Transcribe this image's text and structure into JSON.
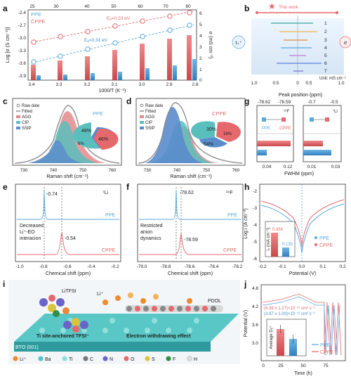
{
  "panels": {
    "a": {
      "letter": "a",
      "top_axis": {
        "ticks": [
          "25",
          "30",
          "40",
          "50",
          "60",
          "70",
          "80"
        ]
      },
      "x_axis": {
        "label": "1000/T (K⁻¹)",
        "ticks": [
          "3.4",
          "3.3",
          "3.2",
          "3.1",
          "3.0",
          "2.9",
          "2.8"
        ]
      },
      "y_left": {
        "label": "Log [σ (S cm⁻¹)]",
        "ticks": [
          "-2.4",
          "-2.7",
          "-3.0",
          "-3.3",
          "-3.6",
          "-3.9"
        ]
      },
      "y_right": {
        "label": "σ (mS cm⁻¹)",
        "ticks": [
          "6",
          "5",
          "4",
          "3",
          "2",
          "1",
          "0"
        ]
      },
      "legend": [
        "PPE",
        "CPPE"
      ],
      "ea_cppe": "Eₐ=0.20 eV",
      "ea_ppe": "Eₐ=0.31 eV"
    },
    "b": {
      "letter": "b",
      "this_work": "This work",
      "tplus": "t₊⁺",
      "sigma": "σ",
      "unit": "Unit: mS cm⁻¹",
      "ticks_left": [
        "1.0",
        "0.5",
        "0"
      ],
      "ticks_right": [
        "0",
        "0.5",
        "1.0"
      ],
      "refs": [
        "1",
        "2",
        "3",
        "4",
        "5",
        "6",
        "7"
      ]
    },
    "c": {
      "letter": "c",
      "name": "PPE",
      "legend": [
        "Raw date",
        "Fitted",
        "AGG",
        "CIP",
        "SSIP"
      ],
      "x_label": "Raman shift (cm⁻¹)",
      "ticks": [
        "730",
        "740",
        "750",
        "760"
      ],
      "pie": [
        "48%",
        "46%",
        "6%"
      ]
    },
    "d": {
      "letter": "d",
      "name": "CPPE",
      "legend": [
        "Raw date",
        "Fitted",
        "AGG",
        "CIP",
        "SSIP"
      ],
      "x_label": "Raman shift (cm⁻¹)",
      "ticks": [
        "730",
        "740",
        "750",
        "760"
      ],
      "pie": [
        "30%",
        "16%",
        "54%"
      ]
    },
    "e": {
      "letter": "e",
      "nucleus": "⁷Li",
      "peak_ppe": "-0.74",
      "peak_cppe": "-0.54",
      "ppe": "PPE",
      "cppe": "CPPE",
      "note1": "Decreased",
      "note2": "Li⁺-EO",
      "note3": "interacion",
      "x_label": "Chemical shift (ppm)",
      "ticks": [
        "-1.0",
        "-0.8",
        "-0.6",
        "-0.4",
        "-0.2"
      ]
    },
    "f": {
      "letter": "f",
      "nucleus": "¹⁹F",
      "peak_ppe": "-78.62",
      "peak_cppe": "-78.59",
      "ppe": "PPE",
      "cppe": "CPPE",
      "note1": "Restricted",
      "note2": "anion",
      "note3": "dynamics",
      "x_label": "Chemical shift (ppm)",
      "ticks": [
        "-79.0",
        "-78.8",
        "-78.6",
        "-78.4",
        "-78.2"
      ]
    },
    "g": {
      "letter": "g",
      "top_label": "Peak position (ppm)",
      "top_ticks": [
        "-78.62",
        "-78.59",
        "-0.7",
        "-0.5"
      ],
      "f_label": "¹⁹F",
      "li_label": "⁷Li",
      "ppe": "PPE",
      "cppe": "CPPE",
      "x_label": "FWHM (ppm)",
      "ticks_left": [
        "0.04",
        "0.12"
      ],
      "ticks_right": [
        "0.01",
        "0.03"
      ]
    },
    "h": {
      "letter": "h",
      "y_label": "Log i (A cm⁻²)",
      "y_ticks": [
        "-2",
        "-3",
        "-4",
        "-5",
        "-6"
      ],
      "x_label": "Potential (V)",
      "x_ticks": [
        "-0.2",
        "-0.1",
        "0.0",
        "0.1",
        "0.2"
      ],
      "legend": [
        "PPE",
        "CPPE"
      ],
      "inset_label": "i₀ (mA cm⁻²)",
      "v_cppe": "0.354",
      "v_ppe": "0.135"
    },
    "i": {
      "letter": "i",
      "litfsi": "LiTFSI",
      "li": "Li⁺",
      "pdol": "PDOL",
      "anchor": "Ti site-anchored TFSI⁻",
      "ewe": "Electron withdrawing effect",
      "bto": "BTO (001)",
      "atoms": [
        "Li⁺",
        "Ba",
        "Ti",
        "C",
        "N",
        "O",
        "S",
        "F",
        "H"
      ]
    },
    "j": {
      "letter": "j",
      "y_label": "Potential (V)",
      "y_ticks": [
        "4.8",
        "4.2",
        "3.6",
        "3.0"
      ],
      "x_label": "Time (h)",
      "x_ticks": [
        "0",
        "25",
        "50",
        "75"
      ],
      "d_cppe": "(6.38 ± 1.27)×10⁻¹¹ cm² s⁻¹",
      "d_ppe": "(3.97 ± 1.00)×10⁻¹¹ cm² s⁻¹",
      "inset_label": "Average Dₗᵢ⁺",
      "legend": [
        "PPE",
        "CPPE"
      ]
    }
  },
  "colors": {
    "ppe": "#5aa8dc",
    "cppe": "#e4686c"
  }
}
